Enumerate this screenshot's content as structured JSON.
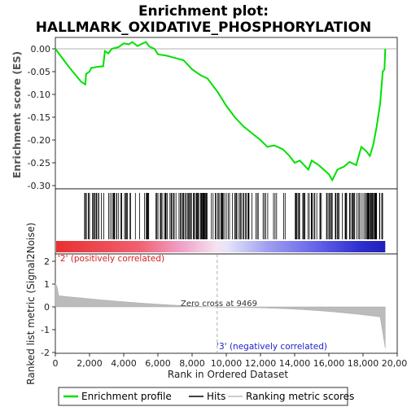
{
  "title_line1": "Enrichment plot:",
  "title_line2": "HALLMARK_OXIDATIVE_PHOSPHORYLATION",
  "es_axis_label": "Enrichment score (ES)",
  "metric_axis_label": "Ranked list metric (Signal2Noise)",
  "x_axis_label": "Rank in Ordered Dataset",
  "pos_label": "'2' (positively correlated)",
  "neg_label": "'3' (negatively correlated)",
  "zero_cross_label": "Zero cross at 9469",
  "legend": {
    "enrichment": "Enrichment profile",
    "hits": "Hits",
    "ranking": "Ranking metric scores"
  },
  "colors": {
    "enrichment_line": "#00e000",
    "hits": "#000000",
    "ranking_fill": "#bbbbbb",
    "positive": "#e02020",
    "negative": "#2020e0"
  },
  "chart_data": {
    "type": "line",
    "total_genes": 19300,
    "zero_cross": 9469,
    "es_ylim": [
      -0.3,
      0.03
    ],
    "es_yticks": [
      0.0,
      -0.05,
      -0.1,
      -0.15,
      -0.2,
      -0.25,
      -0.3
    ],
    "es_ytick_labels": [
      "0.00",
      "-0.05",
      "-0.10",
      "-0.15",
      "-0.20",
      "-0.25",
      "-0.30"
    ],
    "metric_ylim": [
      -2,
      2
    ],
    "metric_yticks": [
      2,
      1,
      0,
      -1,
      -2
    ],
    "xlim": [
      0,
      20000
    ],
    "xticks": [
      0,
      2000,
      4000,
      6000,
      8000,
      10000,
      12000,
      14000,
      16000,
      18000,
      20000
    ],
    "xtick_labels": [
      "0",
      "2,000",
      "4,000",
      "6,000",
      "8,000",
      "10,000",
      "12,000",
      "14,000",
      "16,000",
      "18,000",
      "20,000"
    ],
    "enrichment_profile": [
      [
        0,
        0.0
      ],
      [
        800,
        -0.04
      ],
      [
        1500,
        -0.072
      ],
      [
        1750,
        -0.078
      ],
      [
        1800,
        -0.055
      ],
      [
        2000,
        -0.05
      ],
      [
        2100,
        -0.042
      ],
      [
        2400,
        -0.04
      ],
      [
        2800,
        -0.038
      ],
      [
        2900,
        -0.005
      ],
      [
        3100,
        -0.01
      ],
      [
        3300,
        0.0
      ],
      [
        3700,
        0.004
      ],
      [
        4000,
        0.012
      ],
      [
        4300,
        0.01
      ],
      [
        4500,
        0.015
      ],
      [
        4800,
        0.006
      ],
      [
        5000,
        0.01
      ],
      [
        5300,
        0.015
      ],
      [
        5500,
        0.005
      ],
      [
        5800,
        0.0
      ],
      [
        6000,
        -0.012
      ],
      [
        6500,
        -0.015
      ],
      [
        7000,
        -0.02
      ],
      [
        7500,
        -0.025
      ],
      [
        8000,
        -0.045
      ],
      [
        8500,
        -0.058
      ],
      [
        8900,
        -0.065
      ],
      [
        9500,
        -0.095
      ],
      [
        10000,
        -0.125
      ],
      [
        10500,
        -0.15
      ],
      [
        11000,
        -0.17
      ],
      [
        11500,
        -0.185
      ],
      [
        12000,
        -0.2
      ],
      [
        12400,
        -0.215
      ],
      [
        12800,
        -0.212
      ],
      [
        13300,
        -0.22
      ],
      [
        13700,
        -0.235
      ],
      [
        14000,
        -0.25
      ],
      [
        14300,
        -0.245
      ],
      [
        14800,
        -0.265
      ],
      [
        15000,
        -0.245
      ],
      [
        15400,
        -0.255
      ],
      [
        15700,
        -0.265
      ],
      [
        16000,
        -0.275
      ],
      [
        16200,
        -0.288
      ],
      [
        16500,
        -0.265
      ],
      [
        16900,
        -0.258
      ],
      [
        17200,
        -0.248
      ],
      [
        17600,
        -0.255
      ],
      [
        17900,
        -0.215
      ],
      [
        18200,
        -0.225
      ],
      [
        18400,
        -0.235
      ],
      [
        18600,
        -0.21
      ],
      [
        18800,
        -0.17
      ],
      [
        19000,
        -0.12
      ],
      [
        19150,
        -0.05
      ],
      [
        19250,
        -0.045
      ],
      [
        19300,
        0.0
      ]
    ]
  }
}
